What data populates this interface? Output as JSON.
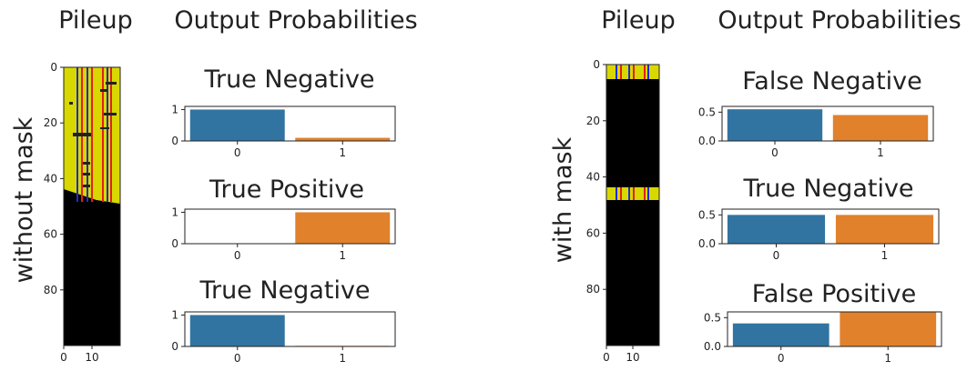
{
  "column_headers": {
    "pileup": "Pileup",
    "output_probabilities": "Output Probabilities"
  },
  "colors": {
    "class_0": "#3274a1",
    "class_1": "#e1812c",
    "pileup_background": "#000000",
    "pileup_signal": "#d8d800",
    "pileup_blue_line": "#1f2bd6",
    "pileup_red_line": "#e0201c"
  },
  "chart_data": [
    {
      "type": "heatmap",
      "panel": "left",
      "ylabel": "without mask",
      "y_ticks": [
        0,
        20,
        40,
        60,
        80
      ],
      "x_ticks": [
        0,
        10
      ],
      "ylim": [
        0,
        100
      ],
      "xlim": [
        0,
        20
      ]
    },
    {
      "type": "bar",
      "panel": "left",
      "title": "True Negative",
      "categories": [
        "0",
        "1"
      ],
      "values": [
        1.0,
        0.1
      ],
      "yticks": [
        0,
        1
      ],
      "ylim": [
        0,
        1.1
      ]
    },
    {
      "type": "bar",
      "panel": "left",
      "title": "True Positive",
      "categories": [
        "0",
        "1"
      ],
      "values": [
        0.0,
        1.0
      ],
      "yticks": [
        0,
        1
      ],
      "ylim": [
        0,
        1.1
      ]
    },
    {
      "type": "bar",
      "panel": "left",
      "title": "True Negative",
      "categories": [
        "0",
        "1"
      ],
      "values": [
        1.0,
        0.02
      ],
      "yticks": [
        0,
        1
      ],
      "ylim": [
        0,
        1.1
      ]
    },
    {
      "type": "heatmap",
      "panel": "right",
      "ylabel": "with mask",
      "y_ticks": [
        0,
        20,
        40,
        60,
        80
      ],
      "x_ticks": [
        0,
        10
      ],
      "ylim": [
        0,
        100
      ],
      "xlim": [
        0,
        20
      ]
    },
    {
      "type": "bar",
      "panel": "right",
      "title": "False Negative",
      "categories": [
        "0",
        "1"
      ],
      "values": [
        0.55,
        0.45
      ],
      "yticks": [
        0.0,
        0.5
      ],
      "ylim": [
        0,
        0.6
      ]
    },
    {
      "type": "bar",
      "panel": "right",
      "title": "True Negative",
      "categories": [
        "0",
        "1"
      ],
      "values": [
        0.5,
        0.5
      ],
      "yticks": [
        0.0,
        0.5
      ],
      "ylim": [
        0,
        0.6
      ]
    },
    {
      "type": "bar",
      "panel": "right",
      "title": "False Positive",
      "categories": [
        "0",
        "1"
      ],
      "values": [
        0.4,
        0.6
      ],
      "yticks": [
        0.0,
        0.5
      ],
      "ylim": [
        0,
        0.6
      ]
    }
  ]
}
